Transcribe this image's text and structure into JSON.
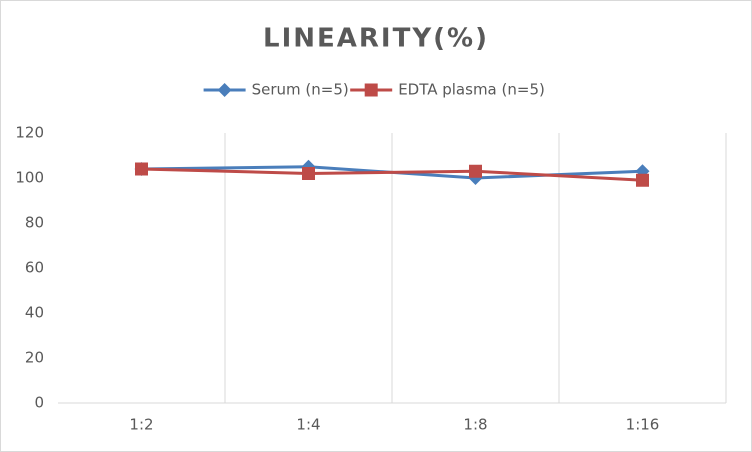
{
  "chart_data": {
    "type": "line",
    "title": "LINEARITY(%)",
    "categories": [
      "1:2",
      "1:4",
      "1:8",
      "1:16"
    ],
    "series": [
      {
        "name": "Serum (n=5)",
        "color": "#4a7ebb",
        "marker": "diamond",
        "values": [
          104,
          105,
          100,
          103
        ]
      },
      {
        "name": "EDTA plasma (n=5)",
        "color": "#be4b48",
        "marker": "square",
        "values": [
          104,
          102,
          103,
          99
        ]
      }
    ],
    "ylim": [
      0,
      120
    ],
    "yticks": [
      0,
      20,
      40,
      60,
      80,
      100,
      120
    ],
    "vertical_grid": true,
    "legend": "top"
  }
}
